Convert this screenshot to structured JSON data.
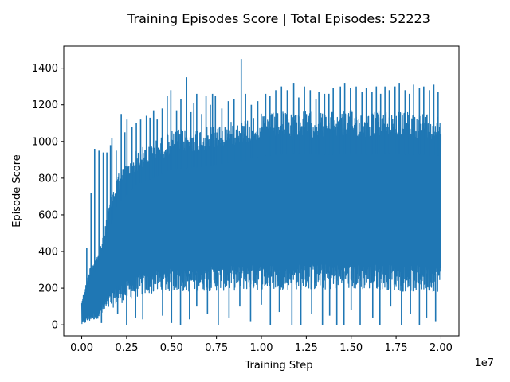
{
  "chart_data": {
    "type": "line",
    "title": "Training Episodes Score | Total Episodes: 52223",
    "xlabel": "Training Step",
    "ylabel": "Episode Score",
    "x_offset_text": "1e7",
    "xlim": [
      -0.1,
      2.1
    ],
    "ylim": [
      -60,
      1520
    ],
    "x_ticks": [
      0.0,
      0.25,
      0.5,
      0.75,
      1.0,
      1.25,
      1.5,
      1.75,
      2.0
    ],
    "x_tick_labels": [
      "0.00",
      "0.25",
      "0.50",
      "0.75",
      "1.00",
      "1.25",
      "1.50",
      "1.75",
      "2.00"
    ],
    "y_ticks": [
      0,
      200,
      400,
      600,
      800,
      1000,
      1200,
      1400
    ],
    "y_tick_labels": [
      "0",
      "200",
      "400",
      "600",
      "800",
      "1000",
      "1200",
      "1400"
    ],
    "grid": false,
    "line_color": "#1f77b4",
    "series": [
      {
        "name": "",
        "envelope": {
          "x": [
            0.0,
            0.05,
            0.1,
            0.15,
            0.2,
            0.25,
            0.3,
            0.4,
            0.5,
            0.6,
            0.7,
            0.8,
            0.9,
            1.0,
            1.1,
            1.2,
            1.3,
            1.4,
            1.5,
            1.6,
            1.7,
            1.8,
            1.9,
            2.0
          ],
          "upper": [
            130,
            330,
            400,
            650,
            830,
            880,
            950,
            1000,
            1060,
            1070,
            1080,
            1100,
            1120,
            1150,
            1160,
            1170,
            1160,
            1160,
            1170,
            1160,
            1170,
            1160,
            1160,
            1150
          ],
          "lower": [
            0,
            20,
            40,
            80,
            110,
            130,
            150,
            170,
            180,
            180,
            185,
            185,
            190,
            190,
            190,
            190,
            190,
            190,
            190,
            190,
            190,
            180,
            180,
            180
          ]
        },
        "spikes_high": [
          [
            0.07,
            420
          ],
          [
            0.13,
            720
          ],
          [
            0.18,
            960
          ],
          [
            0.24,
            950
          ],
          [
            0.3,
            940
          ],
          [
            0.35,
            940
          ],
          [
            0.4,
            980
          ],
          [
            0.42,
            1020
          ],
          [
            0.48,
            950
          ],
          [
            0.55,
            1150
          ],
          [
            0.6,
            1050
          ],
          [
            0.63,
            1120
          ],
          [
            0.7,
            1080
          ],
          [
            0.76,
            1100
          ],
          [
            0.82,
            1120
          ],
          [
            0.9,
            1140
          ],
          [
            0.95,
            1130
          ],
          [
            1.0,
            1170
          ],
          [
            1.05,
            1120
          ],
          [
            1.12,
            1180
          ],
          [
            1.19,
            1250
          ],
          [
            1.24,
            1280
          ],
          [
            1.32,
            1170
          ],
          [
            1.38,
            1230
          ],
          [
            1.46,
            1350
          ],
          [
            1.52,
            1160
          ],
          [
            1.56,
            1210
          ],
          [
            1.6,
            1260
          ],
          [
            1.67,
            1150
          ],
          [
            1.73,
            1250
          ],
          [
            1.79,
            1200
          ],
          [
            1.82,
            1260
          ],
          [
            1.86,
            1250
          ],
          [
            1.95,
            1180
          ],
          [
            2.04,
            1220
          ],
          [
            2.12,
            1230
          ],
          [
            2.22,
            1450
          ],
          [
            2.28,
            1260
          ],
          [
            2.36,
            1200
          ],
          [
            2.45,
            1220
          ],
          [
            2.56,
            1260
          ],
          [
            2.62,
            1250
          ],
          [
            2.7,
            1280
          ],
          [
            2.78,
            1300
          ],
          [
            2.86,
            1280
          ],
          [
            2.95,
            1320
          ],
          [
            3.02,
            1240
          ],
          [
            3.1,
            1300
          ],
          [
            3.18,
            1280
          ],
          [
            3.26,
            1230
          ],
          [
            3.3,
            1270
          ],
          [
            3.38,
            1260
          ],
          [
            3.44,
            1260
          ],
          [
            3.5,
            1290
          ],
          [
            3.6,
            1300
          ],
          [
            3.66,
            1320
          ],
          [
            3.74,
            1290
          ],
          [
            3.82,
            1300
          ],
          [
            3.9,
            1270
          ],
          [
            3.96,
            1290
          ],
          [
            4.04,
            1270
          ],
          [
            4.1,
            1300
          ],
          [
            4.16,
            1260
          ],
          [
            4.22,
            1300
          ],
          [
            4.28,
            1280
          ],
          [
            4.36,
            1300
          ],
          [
            4.42,
            1320
          ],
          [
            4.5,
            1280
          ],
          [
            4.56,
            1260
          ],
          [
            4.62,
            1310
          ],
          [
            4.7,
            1290
          ],
          [
            4.76,
            1300
          ],
          [
            4.84,
            1280
          ],
          [
            4.9,
            1310
          ],
          [
            4.96,
            1270
          ]
        ],
        "spikes_low": [
          [
            0.11,
            10
          ],
          [
            0.2,
            60
          ],
          [
            0.25,
            0
          ],
          [
            0.3,
            40
          ],
          [
            0.34,
            30
          ],
          [
            0.45,
            50
          ],
          [
            0.5,
            10
          ],
          [
            0.55,
            0
          ],
          [
            0.6,
            30
          ],
          [
            0.64,
            100
          ],
          [
            0.7,
            60
          ],
          [
            0.76,
            0
          ],
          [
            0.82,
            40
          ],
          [
            0.88,
            100
          ],
          [
            0.94,
            20
          ],
          [
            1.0,
            110
          ],
          [
            1.05,
            0
          ],
          [
            1.1,
            70
          ],
          [
            1.17,
            0
          ],
          [
            1.22,
            0
          ],
          [
            1.28,
            60
          ],
          [
            1.34,
            0
          ],
          [
            1.38,
            50
          ],
          [
            1.42,
            0
          ],
          [
            1.46,
            0
          ],
          [
            1.5,
            80
          ],
          [
            1.55,
            0
          ],
          [
            1.62,
            40
          ],
          [
            1.66,
            0
          ],
          [
            1.72,
            100
          ],
          [
            1.78,
            0
          ],
          [
            1.83,
            60
          ],
          [
            1.88,
            0
          ],
          [
            1.92,
            40
          ],
          [
            1.97,
            20
          ]
        ]
      }
    ]
  }
}
